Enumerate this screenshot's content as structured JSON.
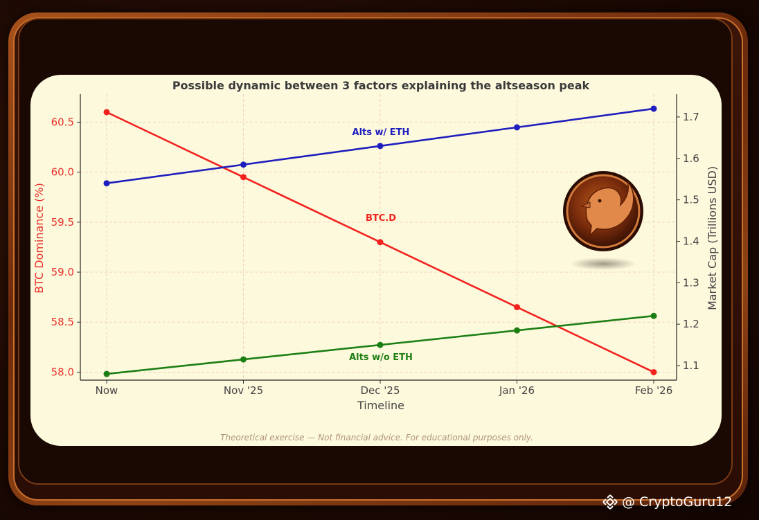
{
  "chart_data": {
    "type": "line",
    "title": "Possible dynamic between 3 factors explaining the altseason peak",
    "xlabel": "Timeline",
    "ylabel_left": "BTC Dominance (%)",
    "ylabel_right": "Market Cap (Trillions USD)",
    "categories": [
      "Now",
      "Nov '25",
      "Dec '25",
      "Jan '26",
      "Feb '26"
    ],
    "ylim_left": [
      57.92,
      60.78
    ],
    "ylim_right": [
      1.065,
      1.755
    ],
    "yticks_left": [
      "58.0",
      "58.5",
      "59.0",
      "59.5",
      "60.0",
      "60.5"
    ],
    "yticks_right": [
      "1.1",
      "1.2",
      "1.3",
      "1.4",
      "1.5",
      "1.6",
      "1.7"
    ],
    "grid": true,
    "series": [
      {
        "name": "BTC.D",
        "axis": "left",
        "color": "#f2231f",
        "values": [
          60.6,
          59.95,
          59.3,
          58.65,
          58.0
        ]
      },
      {
        "name": "Alts w/ ETH",
        "axis": "right",
        "color": "#1e1ebe",
        "values": [
          1.54,
          1.585,
          1.63,
          1.675,
          1.72
        ]
      },
      {
        "name": "Alts w/o ETH",
        "axis": "right",
        "color": "#1c7f14",
        "values": [
          1.08,
          1.115,
          1.15,
          1.185,
          1.22
        ]
      }
    ]
  },
  "disclaimer": "Theoretical exercise — Not financial advice. For educational purposes only.",
  "watermark": "@ CryptoGuru12",
  "icons": {
    "logo": "phoenix-emblem",
    "watermark_icon": "binance-diamond-icon"
  },
  "colors": {
    "panel": "#fdf9dd",
    "frame": "#8e4214",
    "background": "#1e0a04"
  }
}
